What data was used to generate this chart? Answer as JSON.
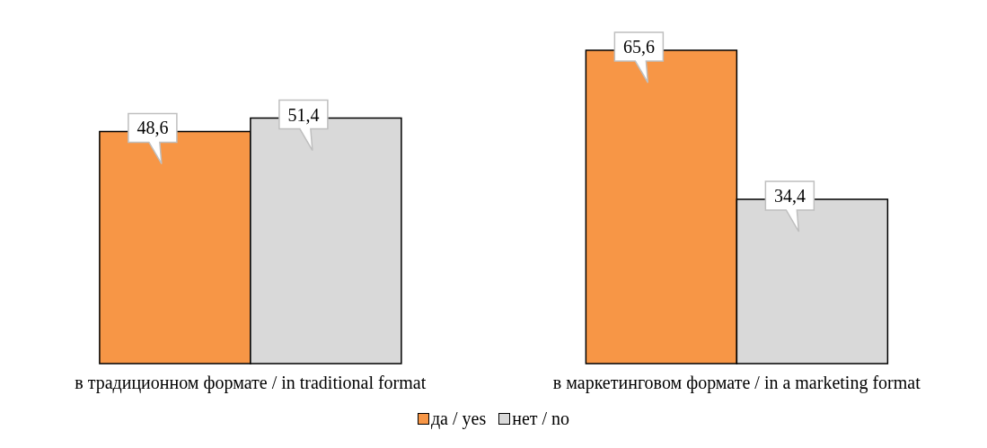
{
  "chart_data": {
    "type": "bar",
    "categories": [
      "в традиционном формате / in traditional format",
      "в маркетинговом формате / in a marketing format"
    ],
    "series": [
      {
        "name": "да / yes",
        "color": "#f79646",
        "values": [
          48.6,
          65.6
        ],
        "value_labels": [
          "48,6",
          "65,6"
        ]
      },
      {
        "name": "нет / no",
        "color": "#d9d9d9",
        "values": [
          51.4,
          34.4
        ],
        "value_labels": [
          "51,4",
          "34,4"
        ]
      }
    ],
    "legend": "bottom",
    "grid": false
  }
}
